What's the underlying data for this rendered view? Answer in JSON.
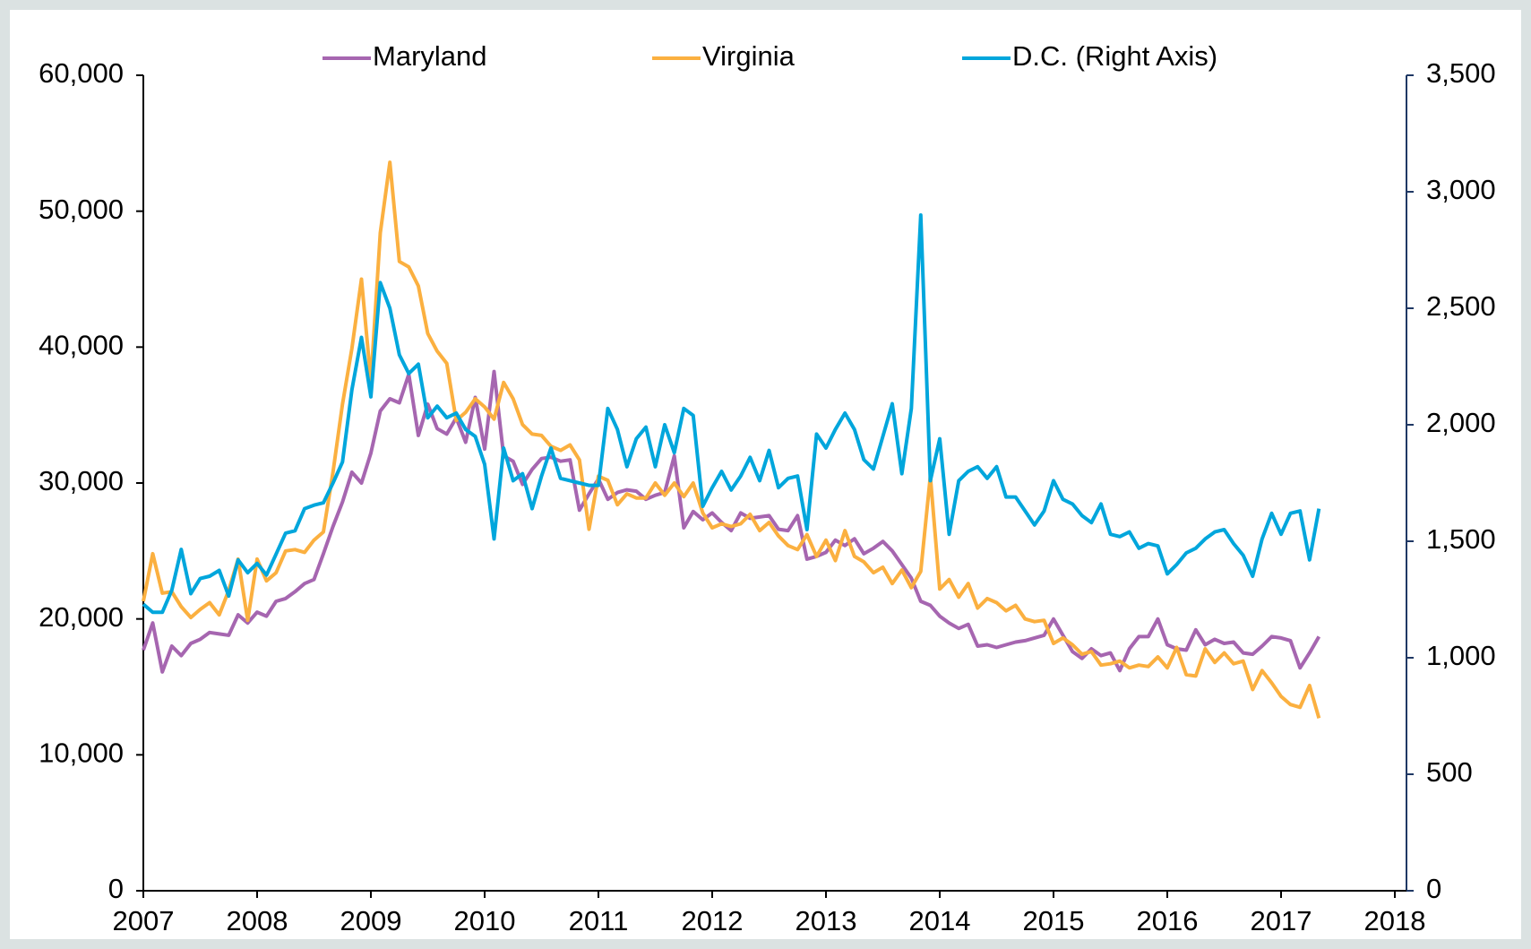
{
  "chart_data": {
    "type": "line",
    "x": [
      2007,
      2007.083,
      2007.167,
      2007.25,
      2007.333,
      2007.417,
      2007.5,
      2007.583,
      2007.667,
      2007.75,
      2007.833,
      2007.917,
      2008,
      2008.083,
      2008.167,
      2008.25,
      2008.333,
      2008.417,
      2008.5,
      2008.583,
      2008.667,
      2008.75,
      2008.833,
      2008.917,
      2009,
      2009.083,
      2009.167,
      2009.25,
      2009.333,
      2009.417,
      2009.5,
      2009.583,
      2009.667,
      2009.75,
      2009.833,
      2009.917,
      2010,
      2010.083,
      2010.167,
      2010.25,
      2010.333,
      2010.417,
      2010.5,
      2010.583,
      2010.667,
      2010.75,
      2010.833,
      2010.917,
      2011,
      2011.083,
      2011.167,
      2011.25,
      2011.333,
      2011.417,
      2011.5,
      2011.583,
      2011.667,
      2011.75,
      2011.833,
      2011.917,
      2012,
      2012.083,
      2012.167,
      2012.25,
      2012.333,
      2012.417,
      2012.5,
      2012.583,
      2012.667,
      2012.75,
      2012.833,
      2012.917,
      2013,
      2013.083,
      2013.167,
      2013.25,
      2013.333,
      2013.417,
      2013.5,
      2013.583,
      2013.667,
      2013.75,
      2013.833,
      2013.917,
      2014,
      2014.083,
      2014.167,
      2014.25,
      2014.333,
      2014.417,
      2014.5,
      2014.583,
      2014.667,
      2014.75,
      2014.833,
      2014.917,
      2015,
      2015.083,
      2015.167,
      2015.25,
      2015.333,
      2015.417,
      2015.5,
      2015.583,
      2015.667,
      2015.75,
      2015.833,
      2015.917,
      2016,
      2016.083,
      2016.167,
      2016.25,
      2016.333,
      2016.417,
      2016.5,
      2016.583,
      2016.667,
      2016.75,
      2016.833,
      2016.917,
      2017,
      2017.083,
      2017.167,
      2017.25,
      2017.333
    ],
    "series": [
      {
        "name": "Maryland",
        "color": "#a666b0",
        "values": [
          17700,
          19700,
          16100,
          18000,
          17300,
          18200,
          18500,
          19000,
          18900,
          18800,
          20300,
          19700,
          20500,
          20200,
          21300,
          21500,
          22000,
          22600,
          22900,
          24800,
          26800,
          28600,
          30800,
          30000,
          32200,
          35300,
          36200,
          35900,
          38000,
          33500,
          35800,
          34000,
          33600,
          34800,
          33000,
          36300,
          32500,
          38200,
          32000,
          31600,
          29900,
          31000,
          31800,
          31900,
          31600,
          31700,
          28000,
          29200,
          30300,
          28800,
          29300,
          29500,
          29400,
          28800,
          29100,
          29300,
          32000,
          26700,
          27900,
          27300,
          27800,
          27100,
          26500,
          27800,
          27400,
          27500,
          27600,
          26600,
          26500,
          27600,
          24400,
          24600,
          24900,
          25800,
          25400,
          25900,
          24800,
          25200,
          25700,
          25000,
          24000,
          23000,
          21300,
          21000,
          20200,
          19700,
          19300,
          19600,
          18000,
          18100,
          17900,
          18100,
          18300,
          18400,
          18600,
          18800,
          20000,
          18800,
          17600,
          17100,
          17800,
          17300,
          17500,
          16200,
          17800,
          18700,
          18700,
          20000,
          18100,
          17800,
          17700,
          19200,
          18100,
          18500,
          18200,
          18300,
          17500,
          17400,
          18000,
          18700,
          18600,
          18400,
          16400,
          17500,
          18700
        ]
      },
      {
        "name": "Virginia",
        "color": "#fbb040",
        "values": [
          21300,
          24800,
          21900,
          22000,
          20900,
          20100,
          20700,
          21200,
          20300,
          22100,
          24400,
          19900,
          24400,
          22800,
          23400,
          25000,
          25100,
          24900,
          25800,
          26400,
          30800,
          35800,
          39900,
          45000,
          37500,
          48400,
          53600,
          46300,
          45900,
          44500,
          41000,
          39700,
          38800,
          34600,
          35200,
          36200,
          35600,
          34700,
          37400,
          36200,
          34300,
          33600,
          33500,
          32700,
          32400,
          32800,
          31700,
          26600,
          30500,
          30200,
          28400,
          29200,
          28900,
          28900,
          30000,
          29100,
          30000,
          29000,
          30000,
          27800,
          26700,
          27000,
          26800,
          27000,
          27700,
          26500,
          27100,
          26100,
          25400,
          25100,
          26200,
          24600,
          25800,
          24300,
          26500,
          24600,
          24200,
          23400,
          23800,
          22600,
          23600,
          22300,
          23500,
          30500,
          22200,
          22900,
          21600,
          22600,
          20800,
          21500,
          21200,
          20600,
          21000,
          20000,
          19800,
          19900,
          18200,
          18600,
          18100,
          17400,
          17600,
          16600,
          16700,
          16900,
          16400,
          16600,
          16500,
          17200,
          16400,
          17900,
          15900,
          15800,
          17800,
          16800,
          17500,
          16700,
          16900,
          14800,
          16200,
          15300,
          14300,
          13700,
          13500,
          15100,
          12700
        ]
      },
      {
        "name": "D.C. (Right Axis)",
        "color": "#00a6dc",
        "axis": "y2",
        "values": [
          1230,
          1195,
          1195,
          1290,
          1465,
          1275,
          1340,
          1350,
          1375,
          1265,
          1420,
          1365,
          1405,
          1355,
          1445,
          1535,
          1545,
          1640,
          1655,
          1665,
          1750,
          1840,
          2150,
          2375,
          2120,
          2610,
          2500,
          2300,
          2220,
          2260,
          2030,
          2080,
          2030,
          2050,
          1980,
          1950,
          1830,
          1510,
          1900,
          1760,
          1790,
          1640,
          1780,
          1900,
          1770,
          1760,
          1750,
          1740,
          1740,
          2070,
          1980,
          1820,
          1940,
          1990,
          1820,
          2000,
          1880,
          2070,
          2040,
          1650,
          1730,
          1800,
          1720,
          1780,
          1860,
          1760,
          1890,
          1730,
          1770,
          1780,
          1550,
          1960,
          1900,
          1980,
          2050,
          1980,
          1850,
          1810,
          1950,
          2090,
          1790,
          2070,
          2900,
          1760,
          1940,
          1530,
          1760,
          1800,
          1820,
          1770,
          1820,
          1690,
          1690,
          1630,
          1570,
          1630,
          1760,
          1680,
          1660,
          1610,
          1580,
          1660,
          1530,
          1520,
          1540,
          1470,
          1490,
          1480,
          1360,
          1400,
          1450,
          1470,
          1510,
          1540,
          1550,
          1490,
          1440,
          1350,
          1510,
          1620,
          1530,
          1620,
          1630,
          1420,
          1640
        ]
      }
    ],
    "xlim": [
      2007,
      2018
    ],
    "xticks": [
      2007,
      2008,
      2009,
      2010,
      2011,
      2012,
      2013,
      2014,
      2015,
      2016,
      2017,
      2018
    ],
    "ylim": [
      0,
      60000
    ],
    "yticks": [
      0,
      {
        "value": 10000,
        "label": "10,000"
      },
      {
        "value": 20000,
        "label": "20,000"
      },
      {
        "value": 30000,
        "label": "30,000"
      },
      {
        "value": 40000,
        "label": "40,000"
      },
      {
        "value": 50000,
        "label": "50,000"
      },
      {
        "value": 60000,
        "label": "60,000"
      }
    ],
    "y2lim": [
      0,
      3500
    ],
    "y2ticks": [
      0,
      500,
      {
        "value": 1000,
        "label": "1,000"
      },
      {
        "value": 1500,
        "label": "1,500"
      },
      {
        "value": 2000,
        "label": "2,000"
      },
      {
        "value": 2500,
        "label": "2,500"
      },
      {
        "value": 3000,
        "label": "3,000"
      },
      {
        "value": 3500,
        "label": "3,500"
      }
    ]
  }
}
